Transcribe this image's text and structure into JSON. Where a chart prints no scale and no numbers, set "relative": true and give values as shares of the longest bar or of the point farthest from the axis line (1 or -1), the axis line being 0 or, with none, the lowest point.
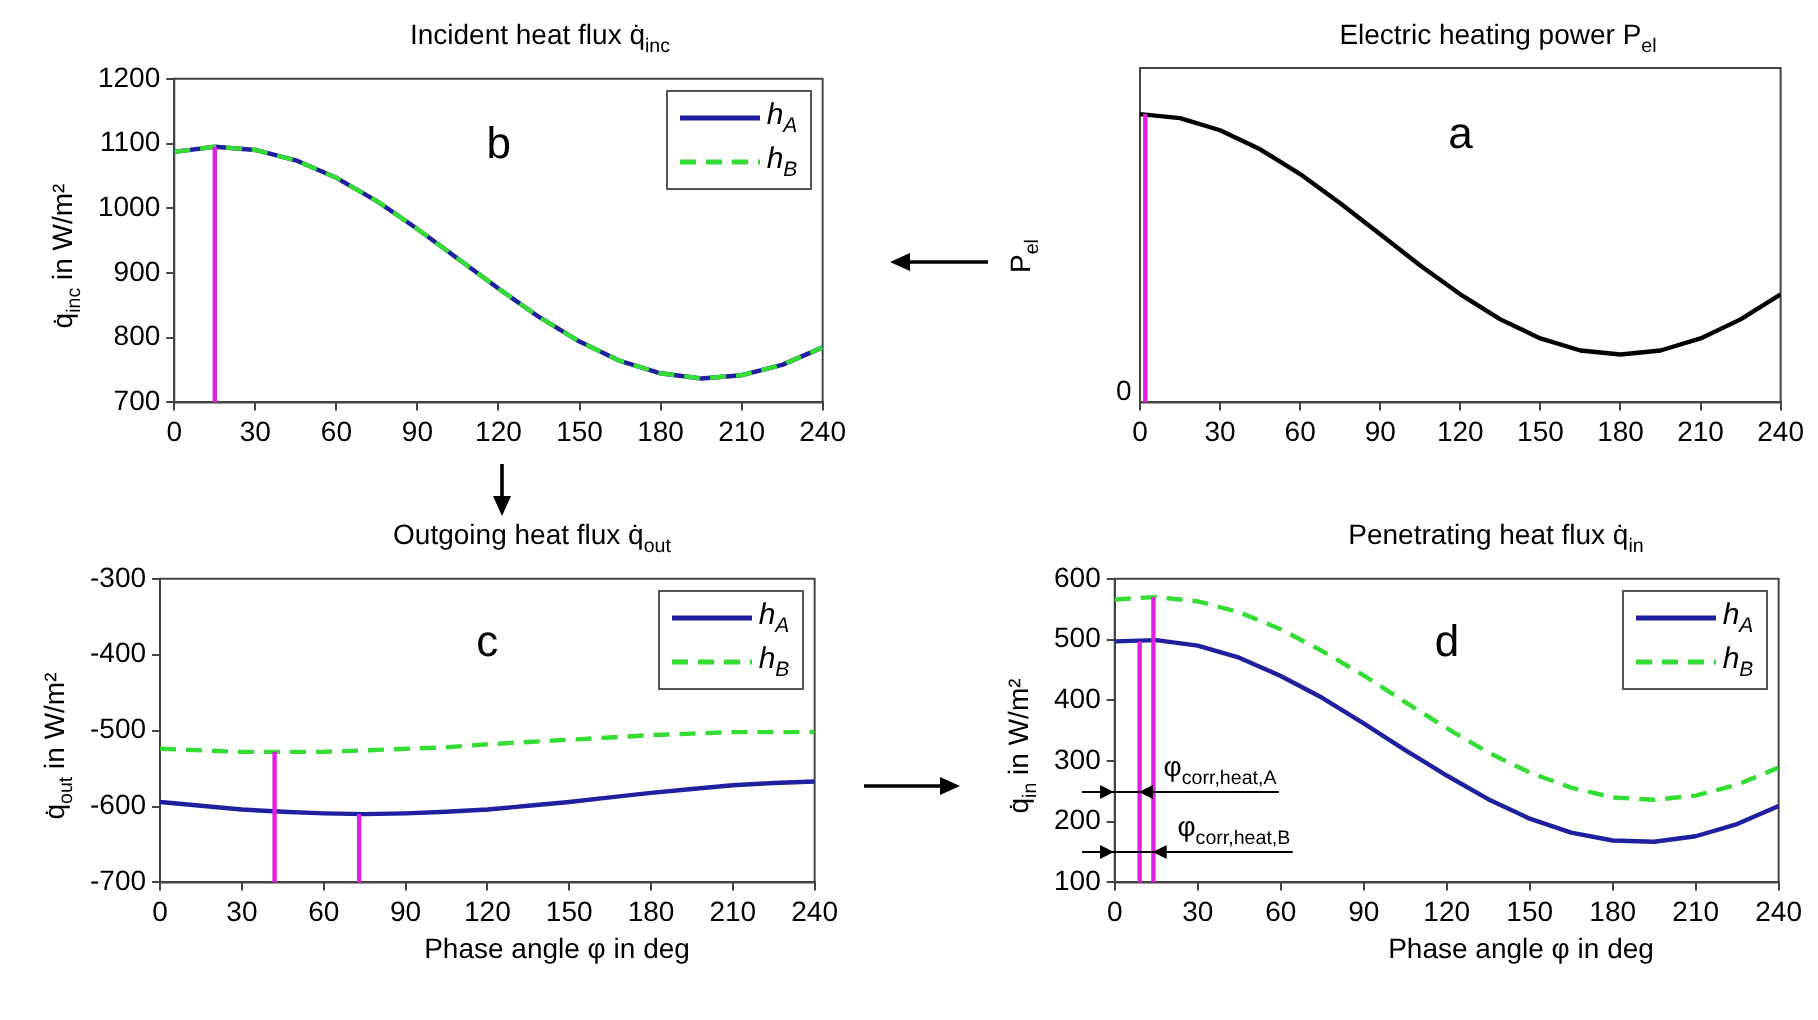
{
  "chart_data": [
    {
      "type": "line",
      "title": "Incident heat flux q̇$_{inc}$",
      "ylabel": "q̇$_{inc}$ in W/m²",
      "x": [
        0,
        15,
        30,
        45,
        60,
        75,
        90,
        105,
        120,
        135,
        150,
        165,
        180,
        195,
        210,
        225,
        240
      ],
      "xlim": [
        0,
        240
      ],
      "xticks": [
        0,
        30,
        60,
        90,
        120,
        150,
        180,
        210,
        240
      ],
      "ylim": [
        700,
        1200
      ],
      "yticks": [
        700,
        800,
        900,
        1000,
        1100,
        1200
      ],
      "legend": "top right",
      "marker": "none",
      "annotations": [
        "b"
      ],
      "series": [
        {
          "name": "h$_{A}$",
          "color": "#1f1fa0",
          "values": [
            1087,
            1095,
            1090,
            1074,
            1047,
            1011,
            968,
            922,
            876,
            832,
            794,
            764,
            745,
            737,
            742,
            758,
            785
          ]
        },
        {
          "name": "h$_{B}$",
          "color": "#33dd33",
          "line_style": "dashed",
          "values": [
            1087,
            1095,
            1090,
            1074,
            1047,
            1011,
            968,
            922,
            876,
            832,
            794,
            764,
            745,
            737,
            742,
            758,
            785
          ]
        },
        {
          "color": "#e020e0",
          "x": [
            15,
            15
          ],
          "values": [
            700,
            1095
          ]
        }
      ]
    },
    {
      "type": "line",
      "title": "Electric heating power P$_{el}$",
      "ylabel": "P$_{el}$",
      "relative": true,
      "x": [
        0,
        15,
        30,
        45,
        60,
        75,
        90,
        105,
        120,
        135,
        150,
        165,
        180,
        195,
        210,
        225,
        240
      ],
      "xlim": [
        0,
        240
      ],
      "xticks": [
        0,
        30,
        60,
        90,
        120,
        150,
        180,
        210,
        240
      ],
      "marker": "none",
      "annotations": [
        "a",
        "0"
      ],
      "series": [
        {
          "color": "#000000",
          "values": [
            1,
            0.986,
            0.944,
            0.878,
            0.792,
            0.691,
            0.583,
            0.475,
            0.375,
            0.288,
            0.222,
            0.18,
            0.166,
            0.18,
            0.222,
            0.288,
            0.375
          ]
        },
        {
          "color": "#e020e0",
          "x": [
            2,
            2
          ],
          "values": [
            0,
            1
          ]
        }
      ]
    },
    {
      "type": "line",
      "title": "Outgoing heat flux q̇$_{out}$",
      "ylabel": "q̇$_{out}$ in W/m²",
      "xlabel": "Phase angle φ in deg",
      "x": [
        0,
        15,
        30,
        45,
        60,
        75,
        90,
        105,
        120,
        135,
        150,
        165,
        180,
        195,
        210,
        225,
        240
      ],
      "xlim": [
        0,
        240
      ],
      "xticks": [
        0,
        30,
        60,
        90,
        120,
        150,
        180,
        210,
        240
      ],
      "ylim": [
        -700,
        -300
      ],
      "yticks": [
        -700,
        -600,
        -500,
        -400,
        -300
      ],
      "legend": "top right",
      "marker": "none",
      "annotations": [
        "c"
      ],
      "series": [
        {
          "name": "h$_{A}$",
          "color": "#1f1fa0",
          "values": [
            -594,
            -599,
            -604,
            -607,
            -609,
            -610,
            -609,
            -607,
            -604,
            -599,
            -594,
            -588,
            -582,
            -577,
            -572,
            -569,
            -567
          ]
        },
        {
          "name": "h$_{B}$",
          "color": "#33dd33",
          "line_style": "dashed",
          "values": [
            -524,
            -526,
            -528,
            -528,
            -528,
            -526,
            -524,
            -522,
            -518,
            -515,
            -512,
            -509,
            -506,
            -504,
            -502,
            -502,
            -502
          ]
        },
        {
          "color": "#e020e0",
          "x": [
            42,
            42
          ],
          "values": [
            -700,
            -528
          ]
        },
        {
          "color": "#e020e0",
          "x": [
            73,
            73
          ],
          "values": [
            -700,
            -610
          ]
        }
      ]
    },
    {
      "type": "line",
      "title": "Penetrating heat flux q̇$_{in}$",
      "ylabel": "q̇$_{in}$ in W/m²",
      "xlabel": "Phase angle φ in deg",
      "x": [
        0,
        15,
        30,
        45,
        60,
        75,
        90,
        105,
        120,
        135,
        150,
        165,
        180,
        195,
        210,
        225,
        240
      ],
      "xlim": [
        0,
        240
      ],
      "xticks": [
        0,
        30,
        60,
        90,
        120,
        150,
        180,
        210,
        240
      ],
      "ylim": [
        100,
        600
      ],
      "yticks": [
        100,
        200,
        300,
        400,
        500,
        600
      ],
      "legend": "top right",
      "marker": "none",
      "annotations": [
        "d",
        {
          "text": "φ$_{corr,heat,A}$",
          "x": 9,
          "y": 250
        },
        {
          "text": "φ$_{corr,heat,B}$",
          "x": 14,
          "y": 150
        }
      ],
      "series": [
        {
          "name": "h$_{A}$",
          "color": "#1f1fa0",
          "values": [
            497,
            499,
            490,
            470,
            440,
            404,
            362,
            318,
            276,
            237,
            205,
            182,
            169,
            167,
            176,
            196,
            226
          ]
        },
        {
          "name": "h$_{B}$",
          "color": "#33dd33",
          "line_style": "dashed",
          "values": [
            566,
            570,
            563,
            545,
            517,
            481,
            441,
            397,
            354,
            314,
            281,
            256,
            240,
            236,
            243,
            261,
            289
          ]
        },
        {
          "color": "#e020e0",
          "x": [
            9,
            9
          ],
          "values": [
            100,
            497
          ]
        },
        {
          "color": "#e020e0",
          "x": [
            14,
            14
          ],
          "values": [
            100,
            570
          ]
        }
      ]
    }
  ]
}
